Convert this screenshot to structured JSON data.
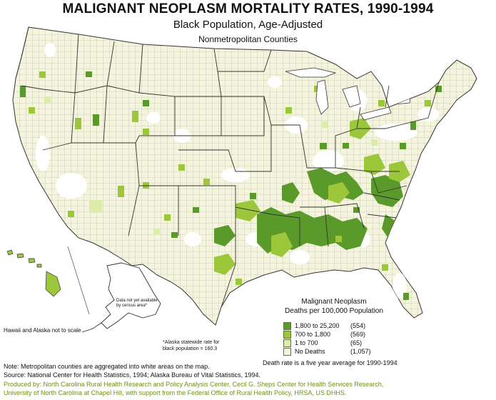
{
  "header": {
    "title": "MALIGNANT NEOPLASM MORTALITY RATES, 1990-1994",
    "subtitle": "Black Population, Age-Adjusted",
    "subtitle2": "Nonmetropolitan Counties"
  },
  "legend": {
    "title_line1": "Malignant Neoplasm",
    "title_line2": "Deaths per 100,000 Population",
    "items": [
      {
        "label": "1,800 to 25,200",
        "count": "(554)",
        "color": "#5a9a2a"
      },
      {
        "label": "700 to 1,800",
        "count": "(569)",
        "color": "#9cc73a"
      },
      {
        "label": "1 to 700",
        "count": "(65)",
        "color": "#dcedaa"
      },
      {
        "label": "No Deaths",
        "count": "(1,057)",
        "color": "#f5f4dc"
      }
    ]
  },
  "map_labels": {
    "hawaii_alaska_note": "Hawaii and Alaska not to scale",
    "alaska_data_note": "Data not yet available by census area*",
    "alaska_rate_note_line1": "*Alaska statewide rate for",
    "alaska_rate_note_line2": "black population = 160.3",
    "death_rate_note": "Death rate is a five year average for 1990-1994"
  },
  "footer": {
    "note": "Note: Metropolitan counties are aggregated into white areas on the map.",
    "source": "Source: National Center for Health Statistics, 1994; Alaska Bureau of Vital Statistics, 1994.",
    "produced_line1": "Produced by: North Carolina Rural Health Research and Policy Analysis Center, Cecil G. Sheps Center for Health Services Research,",
    "produced_line2": "University of North Carolina at Chapel Hill, with support from the Federal Office of Rural Health Policy, HRSA, US DHHS."
  },
  "colors": {
    "dark_green": "#5a9a2a",
    "medium_green": "#9cc73a",
    "light_green": "#dcedaa",
    "no_deaths": "#f5f4dc",
    "metro_white": "#ffffff",
    "border": "#444444"
  }
}
